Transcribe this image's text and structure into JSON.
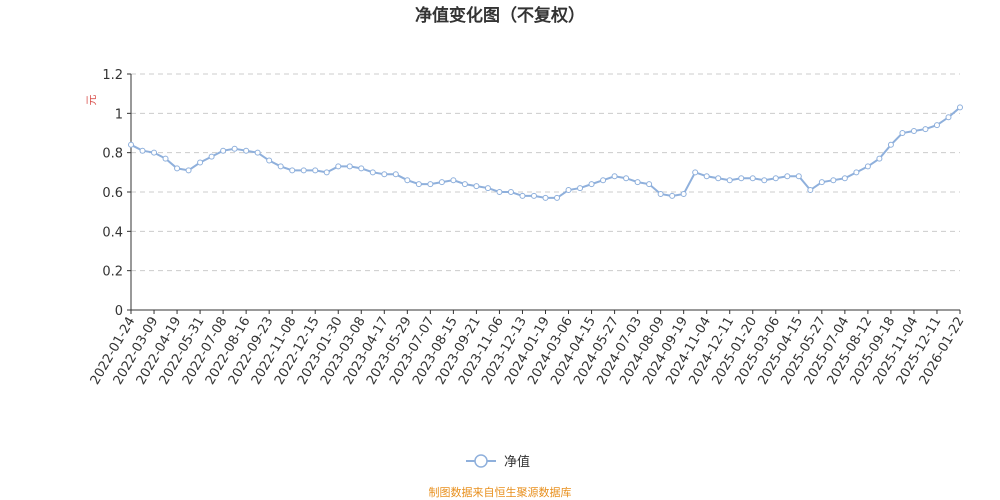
{
  "chart_data": {
    "type": "line",
    "title": "净值变化图（不复权）",
    "y_label": "元",
    "categories": [
      "2022-01-24",
      null,
      "2022-03-09",
      null,
      "2022-04-19",
      null,
      "2022-05-31",
      null,
      "2022-07-08",
      null,
      "2022-08-16",
      null,
      "2022-09-23",
      null,
      "2022-11-08",
      null,
      "2022-12-15",
      null,
      "2023-01-30",
      null,
      "2023-03-08",
      null,
      "2023-04-17",
      null,
      "2023-05-29",
      null,
      "2023-07-07",
      null,
      "2023-08-15",
      null,
      "2023-09-21",
      null,
      "2023-11-06",
      null,
      "2023-12-13",
      null,
      "2024-01-19",
      null,
      "2024-03-06",
      null,
      "2024-04-15",
      null,
      "2024-05-27",
      null,
      "2024-07-03",
      null,
      "2024-08-09",
      null,
      "2024-09-19",
      null,
      "2024-11-04",
      null,
      "2024-12-11",
      null,
      "2025-01-20",
      null,
      "2025-03-06",
      null,
      "2025-04-15",
      null,
      "2025-05-27",
      null,
      "2025-07-04",
      null,
      "2025-08-12",
      null,
      "2025-09-18",
      null,
      "2025-11-04",
      null,
      "2025-12-11",
      null,
      "2026-01-22"
    ],
    "series": [
      {
        "name": "净值",
        "color": "#8fb0dc",
        "values": [
          0.84,
          0.81,
          0.8,
          0.77,
          0.72,
          0.71,
          0.75,
          0.78,
          0.81,
          0.82,
          0.81,
          0.8,
          0.76,
          0.73,
          0.71,
          0.71,
          0.71,
          0.7,
          0.73,
          0.73,
          0.72,
          0.7,
          0.69,
          0.69,
          0.66,
          0.64,
          0.64,
          0.65,
          0.66,
          0.64,
          0.63,
          0.62,
          0.6,
          0.6,
          0.58,
          0.58,
          0.57,
          0.57,
          0.61,
          0.62,
          0.64,
          0.66,
          0.68,
          0.67,
          0.65,
          0.64,
          0.59,
          0.58,
          0.59,
          0.7,
          0.68,
          0.67,
          0.66,
          0.67,
          0.67,
          0.66,
          0.67,
          0.68,
          0.68,
          0.61,
          0.65,
          0.66,
          0.67,
          0.7,
          0.73,
          0.77,
          0.84,
          0.9,
          0.91,
          0.92,
          0.94,
          0.98,
          1.03
        ]
      }
    ],
    "ylim": [
      0,
      1.2
    ],
    "yticks": [
      0,
      0.2,
      0.4,
      0.6,
      0.8,
      1,
      1.2
    ],
    "grid": true,
    "footer": "制图数据来自恒生聚源数据库"
  }
}
